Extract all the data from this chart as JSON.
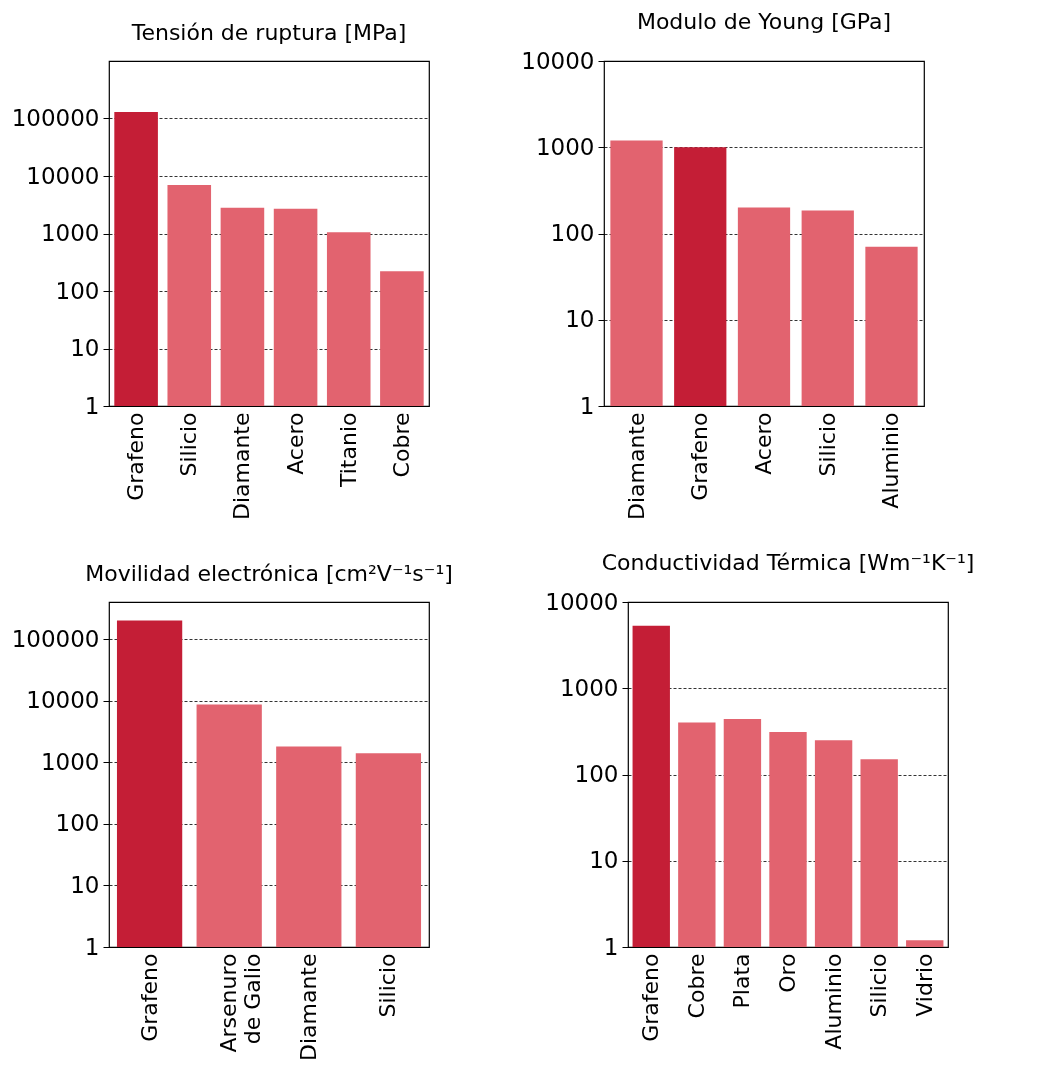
{
  "chart_data": [
    {
      "type": "bar",
      "title": "Tensión de ruptura [MPa]",
      "categories": [
        "Grafeno",
        "Silicio",
        "Diamante",
        "Acero",
        "Titanio",
        "Cobre"
      ],
      "values": [
        130000,
        7000,
        2800,
        2700,
        1050,
        220
      ],
      "colors": [
        "#c41e36",
        "#e2636f",
        "#e2636f",
        "#e2636f",
        "#e2636f",
        "#e2636f"
      ],
      "log": true,
      "ylim": [
        1,
        1000000
      ],
      "yticks": [
        1,
        10,
        100,
        1000,
        10000,
        100000
      ],
      "grid": "y"
    },
    {
      "type": "bar",
      "title": "Modulo de Young [GPa]",
      "categories": [
        "Diamante",
        "Grafeno",
        "Acero",
        "Silicio",
        "Aluminio"
      ],
      "values": [
        1200,
        1000,
        200,
        185,
        70
      ],
      "colors": [
        "#e2636f",
        "#c41e36",
        "#e2636f",
        "#e2636f",
        "#e2636f"
      ],
      "log": true,
      "ylim": [
        1,
        10000
      ],
      "yticks": [
        1,
        10,
        100,
        1000,
        10000
      ],
      "grid": "y"
    },
    {
      "type": "bar",
      "title": "Movilidad electrónica [cm²V⁻¹s⁻¹]",
      "categories": [
        "Grafeno",
        "Arsenuro de Galio",
        "Diamante",
        "Silicio"
      ],
      "values": [
        200000,
        8700,
        1800,
        1400
      ],
      "colors": [
        "#c41e36",
        "#e2636f",
        "#e2636f",
        "#e2636f"
      ],
      "log": true,
      "ylim": [
        1,
        400000
      ],
      "yticks": [
        1,
        10,
        100,
        1000,
        10000,
        100000
      ],
      "grid": "y"
    },
    {
      "type": "bar",
      "title": "Conductividad Térmica [Wm⁻¹K⁻¹]",
      "categories": [
        "Grafeno",
        "Cobre",
        "Plata",
        "Oro",
        "Aluminio",
        "Silicio",
        "Vidrio"
      ],
      "values": [
        5300,
        400,
        440,
        310,
        250,
        150,
        1.2
      ],
      "colors": [
        "#c41e36",
        "#e2636f",
        "#e2636f",
        "#e2636f",
        "#e2636f",
        "#e2636f",
        "#e2636f"
      ],
      "log": true,
      "ylim": [
        1,
        10000
      ],
      "yticks": [
        1,
        10,
        100,
        1000,
        10000
      ],
      "grid": "y"
    }
  ]
}
